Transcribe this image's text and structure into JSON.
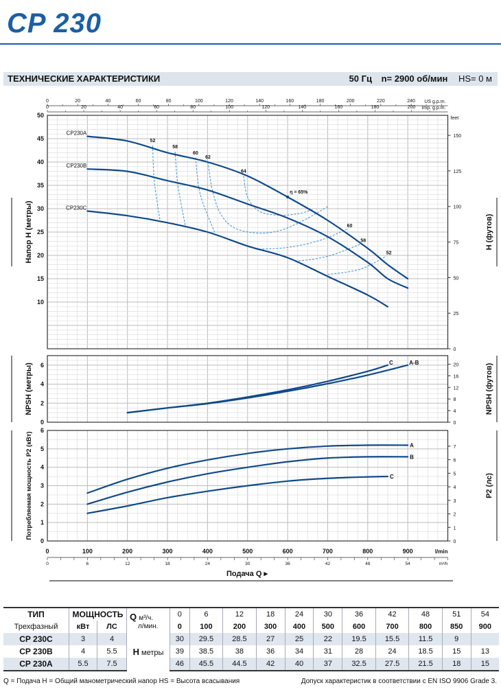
{
  "header": {
    "title": "CP 230",
    "section": "ТЕХНИЧЕСКИЕ ХАРАКТЕРИСТИКИ",
    "freq": "50 Гц",
    "speed": "n= 2900 об/мин",
    "hs": "HS= 0 м"
  },
  "colors": {
    "brand": "#1b5fa6",
    "curve": "#0f4a8a",
    "eff": "#3a8fd6",
    "band": "#dde4ec",
    "row_shade": "#dfe6ee"
  },
  "chart_data": [
    {
      "type": "line",
      "title": "Напор H",
      "ylabel": "Напор H (метры)",
      "ylabel_right": "H (футов)",
      "right_unit": "feet",
      "ylim": [
        0,
        50
      ],
      "yticks": [
        10,
        15,
        20,
        25,
        30,
        35,
        40,
        45,
        50
      ],
      "right_ticks": [
        0,
        25,
        50,
        75,
        100,
        125,
        150
      ],
      "top_axes": [
        {
          "label": "US g.p.m.",
          "ticks": [
            0,
            20,
            40,
            60,
            80,
            100,
            120,
            140,
            160,
            180,
            200,
            220,
            240
          ],
          "factor": 3.785
        },
        {
          "label": "Imp. g.p.m.",
          "ticks": [
            0,
            20,
            40,
            60,
            80,
            100,
            120,
            140,
            160,
            180,
            200
          ],
          "factor": 4.546
        }
      ],
      "series": [
        {
          "name": "CP230A",
          "x": [
            100,
            200,
            300,
            400,
            500,
            600,
            700,
            800,
            850,
            900
          ],
          "y": [
            45.5,
            44.5,
            42,
            40,
            37,
            32.5,
            27.5,
            21.5,
            18,
            15
          ]
        },
        {
          "name": "CP230B",
          "x": [
            100,
            200,
            300,
            400,
            500,
            600,
            700,
            800,
            850,
            900
          ],
          "y": [
            38.5,
            38,
            36,
            34,
            31,
            28,
            24,
            18.5,
            15,
            13
          ]
        },
        {
          "name": "CP230C",
          "x": [
            100,
            200,
            300,
            400,
            500,
            600,
            700,
            800,
            850
          ],
          "y": [
            29.5,
            28.5,
            27,
            25,
            22,
            19.5,
            15.5,
            11.5,
            9
          ]
        }
      ],
      "efficiency_contours": [
        {
          "label": "52",
          "points": [
            [
              263,
              43.5
            ],
            [
              267,
              36
            ],
            [
              281,
              27.6
            ]
          ]
        },
        {
          "label": "58",
          "points": [
            [
              319,
              42.2
            ],
            [
              326,
              35
            ],
            [
              345,
              26.2
            ]
          ]
        },
        {
          "label": "60",
          "points": [
            [
              370,
              40.9
            ],
            [
              382,
              33
            ],
            [
              418,
              24.9
            ]
          ]
        },
        {
          "label": "62",
          "points": [
            [
              401,
              40
            ],
            [
              412,
              34
            ],
            [
              432,
              29
            ],
            [
              465,
              26
            ],
            [
              520,
              24.8
            ],
            [
              580,
              25.3
            ],
            [
              640,
              27.5
            ],
            [
              701,
              30.5
            ]
          ]
        },
        {
          "label": "64",
          "points": [
            [
              490,
              37
            ],
            [
              500,
              32.5
            ],
            [
              530,
              29.4
            ],
            [
              580,
              28.6
            ],
            [
              630,
              29
            ],
            [
              662,
              29.8
            ]
          ]
        },
        {
          "label": "60",
          "points": [
            [
              520,
              21.3
            ],
            [
              600,
              21.7
            ],
            [
              680,
              23.2
            ],
            [
              748,
              25.6
            ]
          ]
        },
        {
          "label": "58",
          "points": [
            [
              619,
              18.7
            ],
            [
              700,
              19.8
            ],
            [
              782,
              22.4
            ]
          ]
        },
        {
          "label": "52",
          "points": [
            [
              700,
              15.9
            ],
            [
              780,
              17
            ],
            [
              846,
              19.8
            ]
          ]
        }
      ],
      "best_efficiency": {
        "label": "η = 65%",
        "x": 600,
        "y": 32.5
      }
    },
    {
      "type": "line",
      "ylabel": "NPSH (метры)",
      "ylabel_right": "NPSH (футов)",
      "ylim": [
        0,
        7
      ],
      "yticks": [
        0,
        2,
        4,
        6
      ],
      "right_ticks": [
        0,
        4,
        8,
        12,
        16,
        20
      ],
      "series": [
        {
          "name": "C",
          "x": [
            200,
            300,
            400,
            500,
            600,
            700,
            800,
            850
          ],
          "y": [
            1.0,
            1.5,
            2.0,
            2.65,
            3.4,
            4.3,
            5.35,
            6.0
          ]
        },
        {
          "name": "A-B",
          "x": [
            200,
            300,
            400,
            500,
            600,
            700,
            800,
            900
          ],
          "y": [
            1.0,
            1.5,
            1.95,
            2.55,
            3.25,
            4.05,
            4.95,
            6.0
          ]
        }
      ]
    },
    {
      "type": "line",
      "ylabel": "Потребляемая мощность P2 (кВт)",
      "ylabel_right": "P2 (лс)",
      "ylim": [
        0,
        6
      ],
      "yticks": [
        0,
        1,
        2,
        3,
        4,
        5,
        6
      ],
      "right_ticks": [
        0,
        1,
        2,
        3,
        4,
        5,
        6,
        7
      ],
      "series": [
        {
          "name": "A",
          "x": [
            100,
            200,
            300,
            400,
            500,
            600,
            700,
            800,
            900
          ],
          "y": [
            2.6,
            3.35,
            3.95,
            4.4,
            4.75,
            5.0,
            5.15,
            5.2,
            5.2
          ]
        },
        {
          "name": "B",
          "x": [
            100,
            200,
            300,
            400,
            500,
            600,
            700,
            800,
            900
          ],
          "y": [
            2.0,
            2.65,
            3.2,
            3.65,
            4.0,
            4.3,
            4.5,
            4.57,
            4.57
          ]
        },
        {
          "name": "C",
          "x": [
            100,
            200,
            300,
            400,
            500,
            600,
            700,
            800,
            850
          ],
          "y": [
            1.5,
            1.9,
            2.35,
            2.7,
            3.0,
            3.25,
            3.4,
            3.48,
            3.5
          ]
        }
      ],
      "xlabel": "Подача Q",
      "xticks_lmin": [
        0,
        100,
        200,
        300,
        400,
        500,
        600,
        700,
        800,
        900
      ],
      "xunit_lmin": "l/min",
      "xticks_m3h": [
        0,
        6,
        12,
        18,
        24,
        30,
        36,
        42,
        48,
        54
      ],
      "xunit_m3h": "m³/h",
      "xlim": [
        0,
        1000
      ]
    }
  ],
  "table": {
    "h_type": "ТИП",
    "h_power": "МОЩНОСТЬ",
    "h_q": "Q",
    "h_q_m3": "м³/ч.",
    "h_q_l": "л/мин.",
    "h_phase": "Трехфазный",
    "h_kw": "кВт",
    "h_hp": "ЛС",
    "h_h": "H",
    "h_h_unit": "метры",
    "q_m3": [
      "0",
      "6",
      "12",
      "18",
      "24",
      "30",
      "36",
      "42",
      "48",
      "51",
      "54"
    ],
    "q_l": [
      "0",
      "100",
      "200",
      "300",
      "400",
      "500",
      "600",
      "700",
      "800",
      "850",
      "900"
    ],
    "rows": [
      {
        "model": "CP 230C",
        "kw": "3",
        "hp": "4",
        "h": [
          "30",
          "29.5",
          "28.5",
          "27",
          "25",
          "22",
          "19.5",
          "15.5",
          "11.5",
          "9",
          ""
        ]
      },
      {
        "model": "CP 230B",
        "kw": "4",
        "hp": "5.5",
        "h": [
          "39",
          "38.5",
          "38",
          "36",
          "34",
          "31",
          "28",
          "24",
          "18.5",
          "15",
          "13"
        ]
      },
      {
        "model": "CP 230A",
        "kw": "5.5",
        "hp": "7.5",
        "h": [
          "46",
          "45.5",
          "44.5",
          "42",
          "40",
          "37",
          "32.5",
          "27.5",
          "21.5",
          "18",
          "15"
        ]
      }
    ]
  },
  "footer": {
    "legend": "Q = Подача   H = Общий манометрический напор   HS = Высота всасывания",
    "note": "Допуск характеристик в соответствии с EN ISO 9906 Grade 3."
  }
}
